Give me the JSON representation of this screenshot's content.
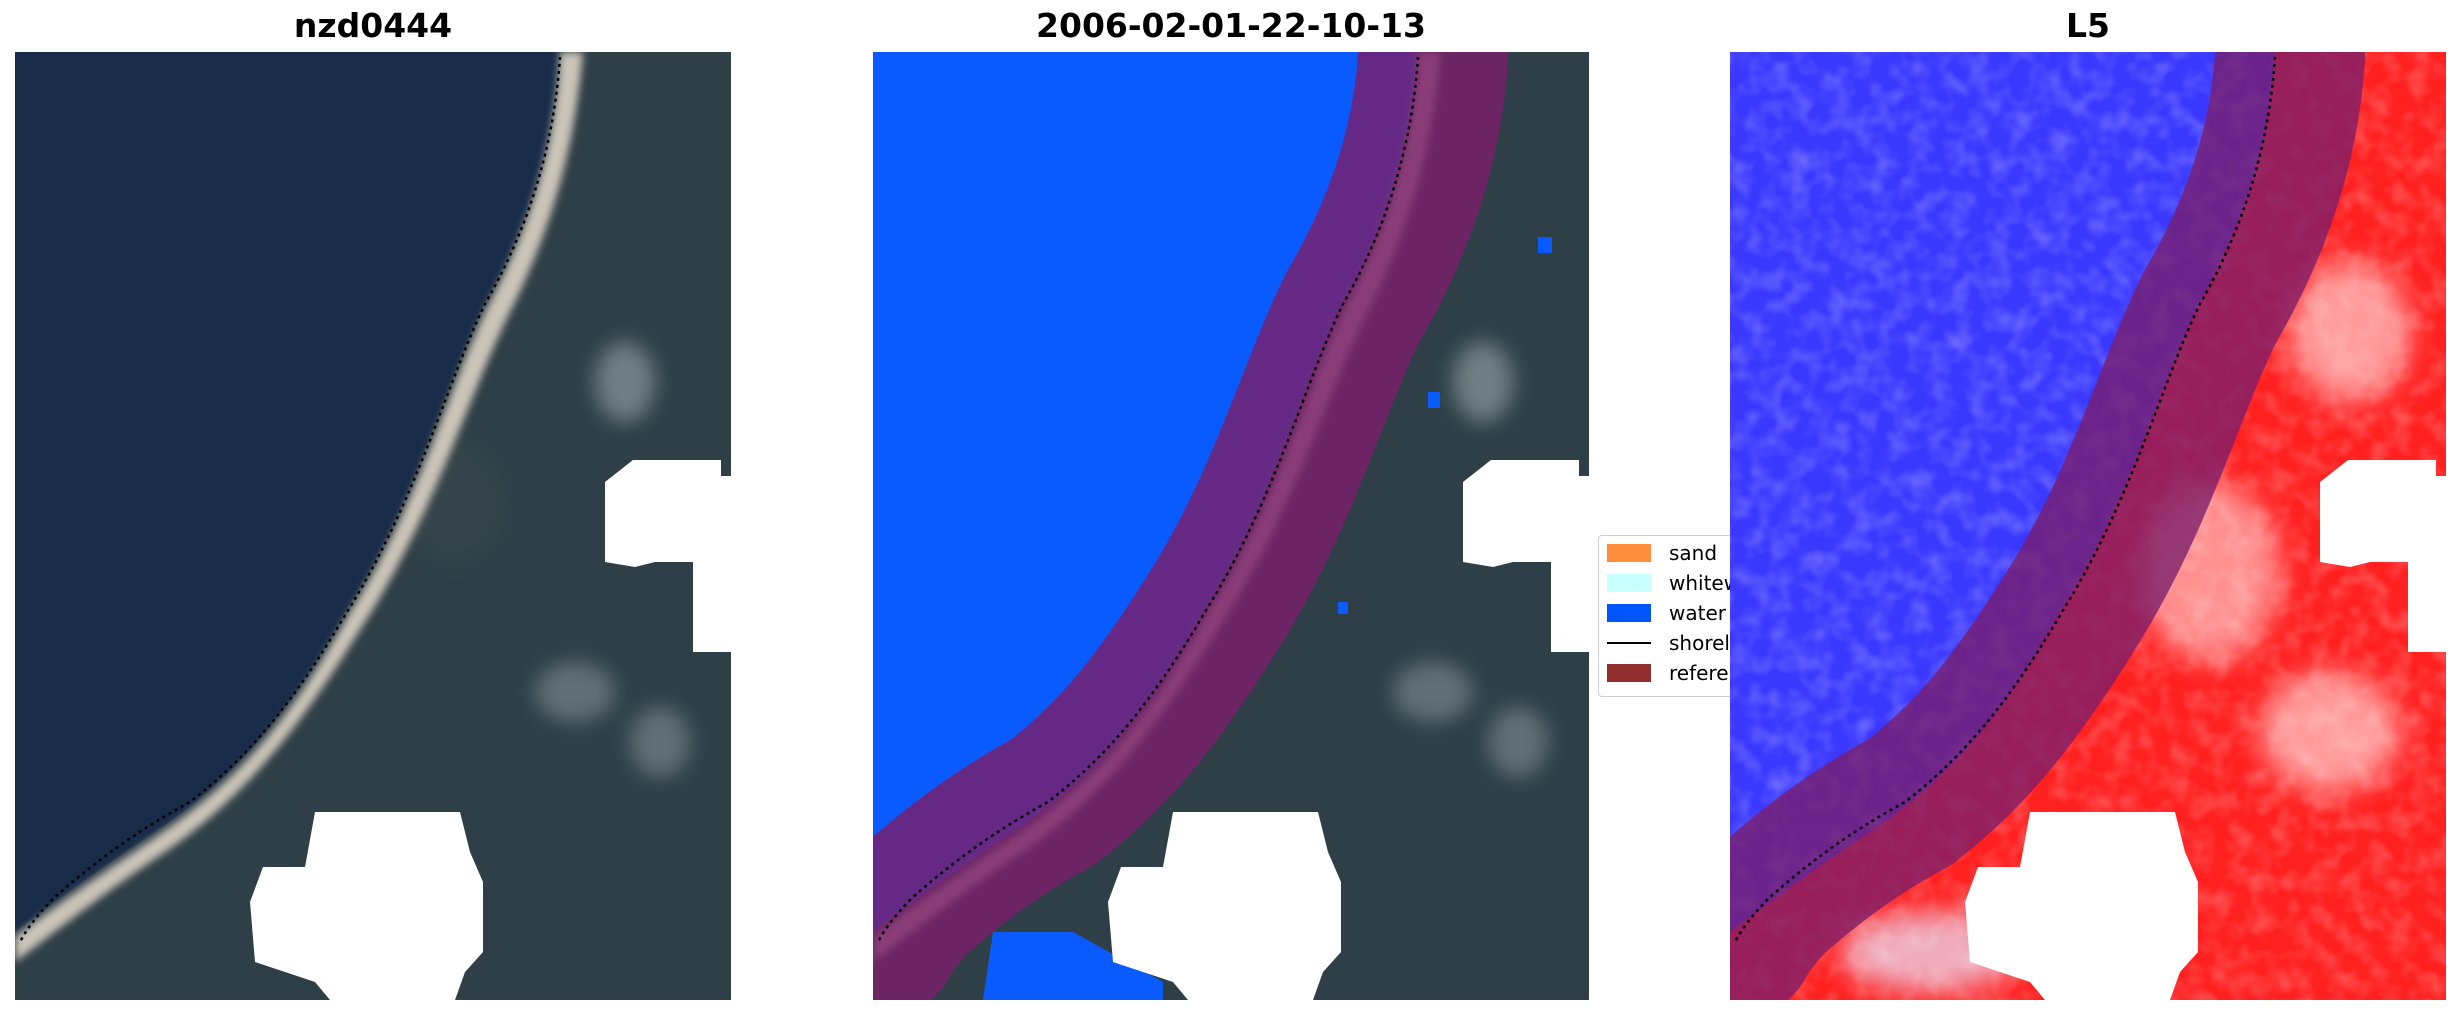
{
  "panels": [
    {
      "title": "nzd0444"
    },
    {
      "title": "2006-02-01-22-10-13"
    },
    {
      "title": "L5"
    }
  ],
  "legend": {
    "items": [
      {
        "label": "sand",
        "color": "#ff8c3a",
        "kind": "patch"
      },
      {
        "label": "whitewater",
        "color": "#c8ffff",
        "kind": "patch"
      },
      {
        "label": "water",
        "color": "#0055ff",
        "kind": "patch"
      },
      {
        "label": "shoreline",
        "color": "#000000",
        "kind": "line"
      },
      {
        "label": "reference shoreline buffer",
        "color": "#912e2e",
        "kind": "patch"
      }
    ]
  },
  "colors": {
    "ocean": "#172a48",
    "land": "#2d3d45",
    "beach": "#c9c2b6",
    "cloud_mask": "#ffffff",
    "water_class": "#0a5bff",
    "buffer_overlay": "#7a1e6a",
    "index_water": "#2d2bff",
    "index_land": "#ff1a1a"
  }
}
